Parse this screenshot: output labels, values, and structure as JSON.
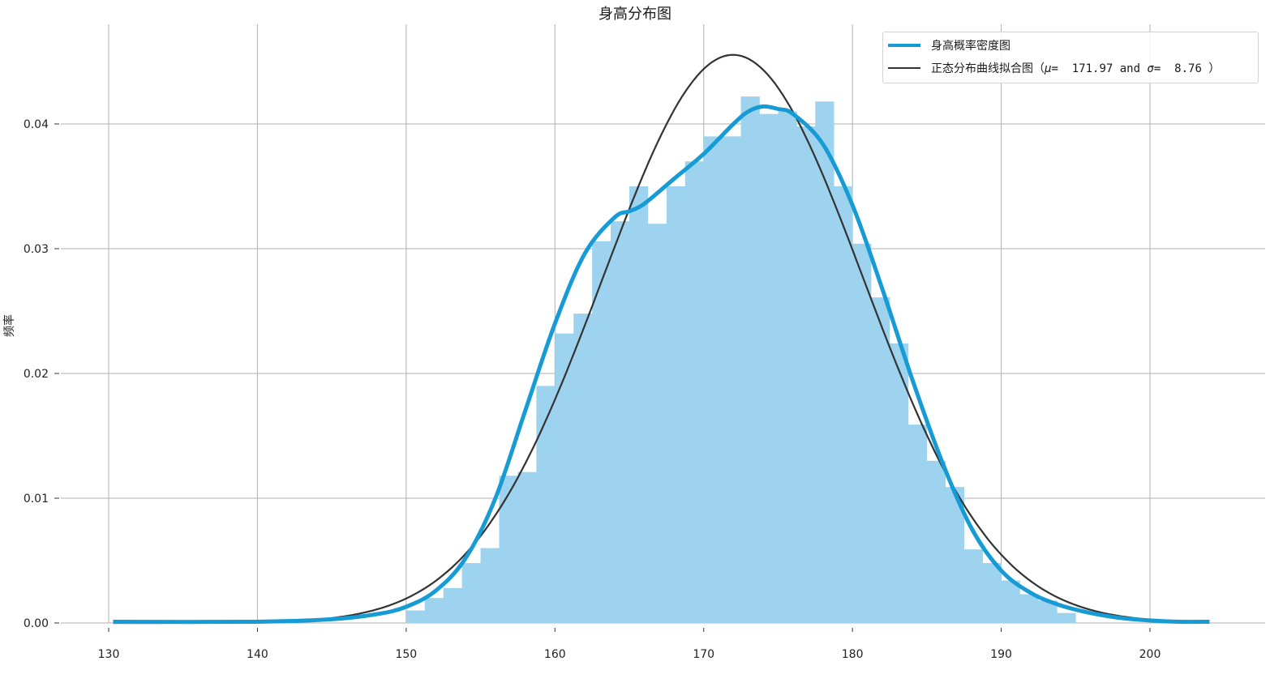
{
  "chart_data": {
    "type": "bar",
    "title": "身高分布图",
    "xlabel": "",
    "ylabel": "频率",
    "xlim": [
      130,
      204
    ],
    "ylim": [
      0,
      0.046
    ],
    "xticks": [
      "130",
      "140",
      "150",
      "160",
      "170",
      "180",
      "190",
      "200"
    ],
    "yticks": [
      "0.00",
      "0.01",
      "0.02",
      "0.03",
      "0.04"
    ],
    "grid": true,
    "legend_position": "top-right",
    "colors": {
      "hist": "#9dd3ee",
      "kde": "#169bd5",
      "normal": "#333333",
      "grid": "#b0b0b0"
    },
    "histogram": {
      "bin_width": 1.25,
      "bin_start": 150.0,
      "bins": [
        [
          150.0,
          0.001
        ],
        [
          151.25,
          0.002
        ],
        [
          152.5,
          0.0028
        ],
        [
          153.75,
          0.0048
        ],
        [
          155.0,
          0.006
        ],
        [
          156.25,
          0.0118
        ],
        [
          157.5,
          0.0121
        ],
        [
          158.75,
          0.019
        ],
        [
          160.0,
          0.0232
        ],
        [
          161.25,
          0.0248
        ],
        [
          162.5,
          0.0306
        ],
        [
          163.75,
          0.0322
        ],
        [
          165.0,
          0.035
        ],
        [
          166.25,
          0.032
        ],
        [
          167.5,
          0.035
        ],
        [
          168.75,
          0.037
        ],
        [
          170.0,
          0.039
        ],
        [
          171.25,
          0.039
        ],
        [
          172.5,
          0.0422
        ],
        [
          173.75,
          0.0408
        ],
        [
          175.0,
          0.041
        ],
        [
          176.25,
          0.0398
        ],
        [
          177.5,
          0.0418
        ],
        [
          178.75,
          0.035
        ],
        [
          180.0,
          0.0304
        ],
        [
          181.25,
          0.0261
        ],
        [
          182.5,
          0.0224
        ],
        [
          183.75,
          0.0159
        ],
        [
          185.0,
          0.013
        ],
        [
          186.25,
          0.0109
        ],
        [
          187.5,
          0.0059
        ],
        [
          188.75,
          0.0048
        ],
        [
          190.0,
          0.0034
        ],
        [
          191.25,
          0.0023
        ],
        [
          192.5,
          0.0018
        ],
        [
          193.75,
          0.0008
        ]
      ]
    },
    "series": [
      {
        "name": "身高概率密度图",
        "x": [
          130.3,
          140,
          145,
          148,
          150,
          152,
          154,
          156,
          158,
          160,
          162,
          164,
          165,
          166,
          168,
          170,
          172,
          173,
          174,
          175,
          176,
          178,
          180,
          182,
          184,
          186,
          188,
          190,
          192,
          194,
          196,
          198,
          200,
          202,
          204
        ],
        "values": [
          0.0001,
          0.0001,
          0.0003,
          0.0007,
          0.0013,
          0.0026,
          0.0052,
          0.01,
          0.017,
          0.024,
          0.0296,
          0.0325,
          0.033,
          0.0336,
          0.0356,
          0.0376,
          0.04,
          0.041,
          0.0414,
          0.0412,
          0.0408,
          0.0384,
          0.0335,
          0.0268,
          0.0196,
          0.013,
          0.0076,
          0.0042,
          0.0024,
          0.0014,
          0.0008,
          0.0004,
          0.0002,
          0.0001,
          0.0001
        ]
      },
      {
        "name": "正态分布曲线拟合图（$\\mu=$ 171.97 and $\\sigma=$ 8.76 ）",
        "distribution": "normal",
        "mu": 171.97,
        "sigma": 8.76,
        "x_range": [
          130.3,
          204
        ]
      }
    ],
    "legend_labels": {
      "kde": "身高概率密度图",
      "normal_prefix": "正态分布曲线拟合图（",
      "mu_symbol": "μ",
      "normal_mid1": "=  171.97 and ",
      "sigma_symbol": "σ",
      "normal_mid2": "=  8.76 ）"
    }
  }
}
